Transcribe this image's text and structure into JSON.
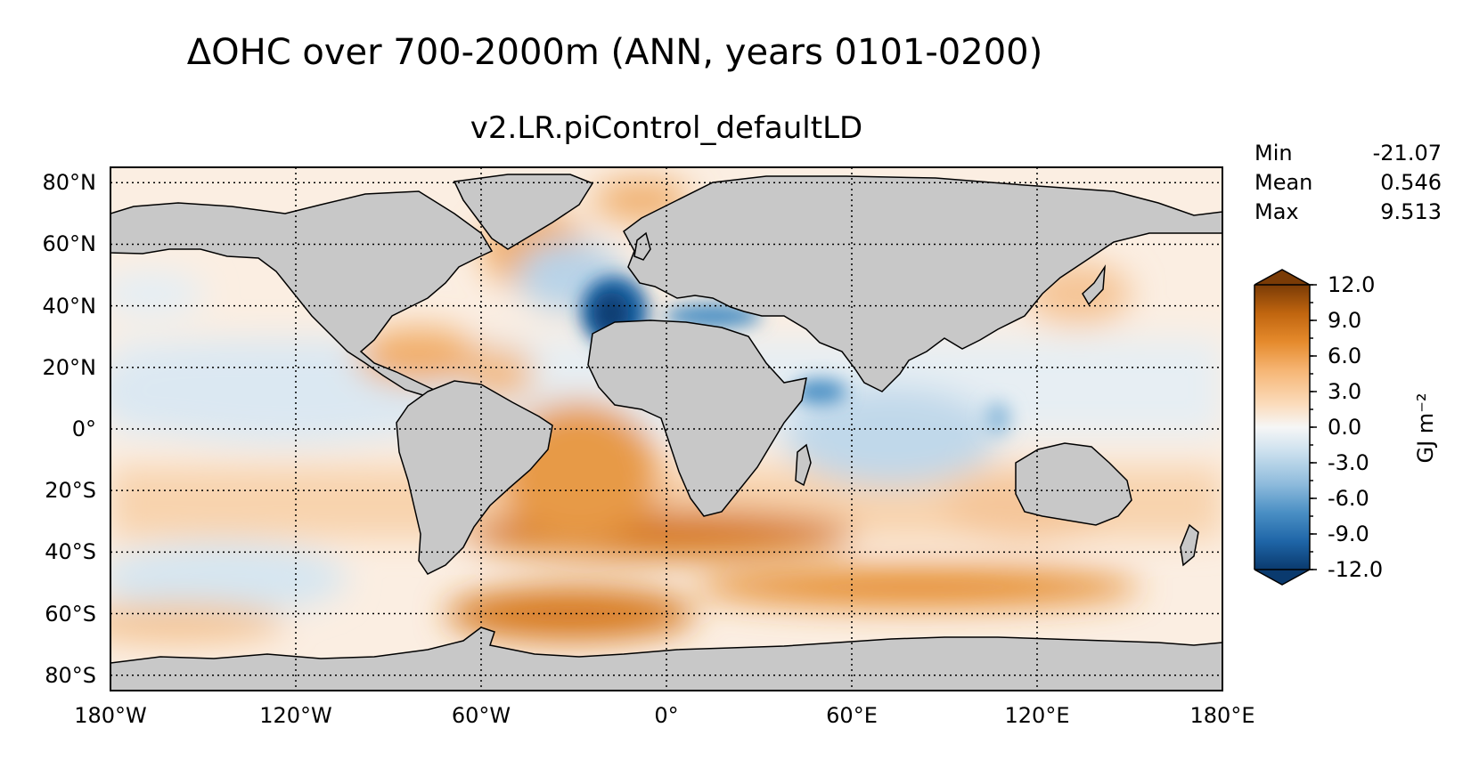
{
  "figure": {
    "suptitle": "ΔOHC over 700-2000m (ANN, years 0101-0200)",
    "subtitle": "v2.LR.piControl_defaultLD"
  },
  "stats": [
    {
      "label": "Min",
      "value": "-21.07"
    },
    {
      "label": "Mean",
      "value": "0.546"
    },
    {
      "label": "Max",
      "value": "9.513"
    }
  ],
  "map": {
    "projection": "PlateCarree",
    "lon_range": [
      -180,
      180
    ],
    "lat_range": [
      -85,
      85
    ],
    "land_color": "#c8c8c8",
    "ocean_default_color": "#fbeee2",
    "gridlines": "dotted",
    "lat_ticks": [
      {
        "value": 80,
        "label": "80°N"
      },
      {
        "value": 60,
        "label": "60°N"
      },
      {
        "value": 40,
        "label": "40°N"
      },
      {
        "value": 20,
        "label": "20°N"
      },
      {
        "value": 0,
        "label": "0°"
      },
      {
        "value": -20,
        "label": "20°S"
      },
      {
        "value": -40,
        "label": "40°S"
      },
      {
        "value": -60,
        "label": "60°S"
      },
      {
        "value": -80,
        "label": "80°S"
      }
    ],
    "lon_ticks": [
      {
        "value": -180,
        "label": "180°W"
      },
      {
        "value": -120,
        "label": "120°W"
      },
      {
        "value": -60,
        "label": "60°W"
      },
      {
        "value": 0,
        "label": "0°"
      },
      {
        "value": 60,
        "label": "60°E"
      },
      {
        "value": 120,
        "label": "120°E"
      },
      {
        "value": 180,
        "label": "180°E"
      }
    ]
  },
  "colorbar": {
    "units": "GJ m⁻²",
    "min": -12.0,
    "max": 12.0,
    "extend": "both",
    "ticks": [
      {
        "value": 12,
        "label": "12.0"
      },
      {
        "value": 9,
        "label": "9.0"
      },
      {
        "value": 6,
        "label": "6.0"
      },
      {
        "value": 3,
        "label": "3.0"
      },
      {
        "value": 0,
        "label": "0.0"
      },
      {
        "value": -3,
        "label": "-3.0"
      },
      {
        "value": -6,
        "label": "-6.0"
      },
      {
        "value": -9,
        "label": "-9.0"
      },
      {
        "value": -12,
        "label": "-12.0"
      }
    ],
    "colormap": [
      "#0a3a6e",
      "#1f66a8",
      "#4a8fc4",
      "#8ebbdc",
      "#cfe2ef",
      "#f6f6f6",
      "#fbdcbc",
      "#f6b574",
      "#e58a2c",
      "#c0650f",
      "#7a3b06"
    ]
  },
  "chart_data": {
    "type": "heatmap",
    "title": "ΔOHC over 700-2000m (ANN, years 0101-0200)",
    "subtitle": "v2.LR.piControl_defaultLD",
    "colorbar_label": "GJ m⁻²",
    "vmin": -12.0,
    "vmax": 12.0,
    "anomalies": [
      {
        "region": "Northeast Atlantic off Iberia",
        "lon": -12,
        "lat": 40,
        "value": -12.0
      },
      {
        "region": "Mediterranean Sea",
        "lon": 22,
        "lat": 36,
        "value": -6.0
      },
      {
        "region": "North Atlantic subpolar",
        "lon": -30,
        "lat": 57,
        "value": -3.0
      },
      {
        "region": "Indian Ocean",
        "lon": 75,
        "lat": -12,
        "value": -2.0
      },
      {
        "region": "Gulf of Aden",
        "lon": 48,
        "lat": 12,
        "value": -6.0
      },
      {
        "region": "Labrador Sea",
        "lon": -53,
        "lat": 57,
        "value": 4.0
      },
      {
        "region": "Nordic Seas",
        "lon": -5,
        "lat": 73,
        "value": 5.0
      },
      {
        "region": "Gulf of Mexico / Caribbean",
        "lon": -80,
        "lat": 20,
        "value": 4.0
      },
      {
        "region": "South Atlantic",
        "lon": -20,
        "lat": -30,
        "value": 5.0
      },
      {
        "region": "Southern Ocean 40°S band",
        "lon": 0,
        "lat": -42,
        "value": 7.0
      },
      {
        "region": "Weddell Sea",
        "lon": -30,
        "lat": -68,
        "value": 8.0
      },
      {
        "region": "Ross Sea",
        "lon": 170,
        "lat": -72,
        "value": 3.0
      },
      {
        "region": "South Pacific",
        "lon": -140,
        "lat": -50,
        "value": 2.0
      },
      {
        "region": "Southeast Pacific",
        "lon": -150,
        "lat": -58,
        "value": -2.0
      },
      {
        "region": "Kuroshio Extension",
        "lon": 155,
        "lat": 40,
        "value": 3.0
      },
      {
        "region": "Tropical Pacific",
        "lon": -150,
        "lat": 5,
        "value": -1.0
      },
      {
        "region": "Eastern Indian / Western Australia",
        "lon": 105,
        "lat": -30,
        "value": 4.0
      }
    ],
    "stats": {
      "min": -21.07,
      "mean": 0.546,
      "max": 9.513
    }
  }
}
